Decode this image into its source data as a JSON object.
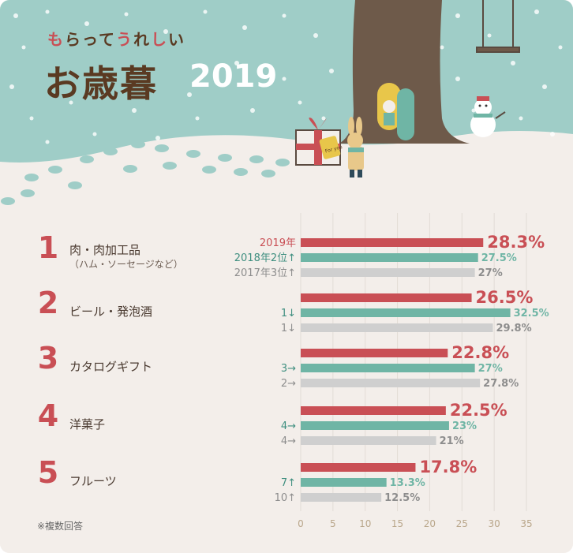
{
  "header": {
    "tagline": [
      "も",
      "ら",
      "っ",
      "て",
      "う",
      "れ",
      "し",
      "い"
    ],
    "tagline_colors": [
      "#c94f55",
      "#5a3a22",
      "#5a3a22",
      "#5a3a22",
      "#c94f55",
      "#5a3a22",
      "#c94f55",
      "#5a3a22"
    ],
    "title": "お歳暮",
    "year": "2019"
  },
  "tag_text": "For you",
  "footnote": "※複数回答",
  "colors": {
    "y2019": "#c94f55",
    "y2018": "#6fb5a5",
    "y2017": "#cfcfcf",
    "sky": "#9fcdc7",
    "snow": "#f3eeea",
    "trunk": "#6e5a4a"
  },
  "chart_data": {
    "type": "bar",
    "orientation": "horizontal",
    "xlim": [
      0,
      35
    ],
    "xticks": [
      "0",
      "5",
      "10",
      "15",
      "20",
      "25",
      "30",
      "35"
    ],
    "grid": true,
    "series": [
      {
        "name": "2019年",
        "values": [
          28.3,
          26.5,
          22.8,
          22.5,
          17.8
        ],
        "labels": [
          "28.3%",
          "26.5%",
          "22.8%",
          "22.5%",
          "17.8%"
        ]
      },
      {
        "name": "2018年",
        "values": [
          27.5,
          32.5,
          27,
          23,
          13.3
        ],
        "labels": [
          "27.5%",
          "32.5%",
          "27%",
          "23%",
          "13.3%"
        ],
        "ranks": [
          "2018年2位↑",
          "1↓",
          "3→",
          "4→",
          "7↑"
        ]
      },
      {
        "name": "2017年",
        "values": [
          27,
          29.8,
          27.8,
          21,
          12.5
        ],
        "labels": [
          "27%",
          "29.8%",
          "27.8%",
          "21%",
          "12.5%"
        ],
        "ranks": [
          "2017年3位↑",
          "1↓",
          "2→",
          "4→",
          "10↑"
        ]
      }
    ],
    "first_row_label_2019": "2019年",
    "categories": [
      {
        "rank": "1",
        "name": "肉・肉加工品",
        "sub": "（ハム・ソーセージなど）"
      },
      {
        "rank": "2",
        "name": "ビール・発泡酒",
        "sub": ""
      },
      {
        "rank": "3",
        "name": "カタログギフト",
        "sub": ""
      },
      {
        "rank": "4",
        "name": "洋菓子",
        "sub": ""
      },
      {
        "rank": "5",
        "name": "フルーツ",
        "sub": ""
      }
    ]
  }
}
